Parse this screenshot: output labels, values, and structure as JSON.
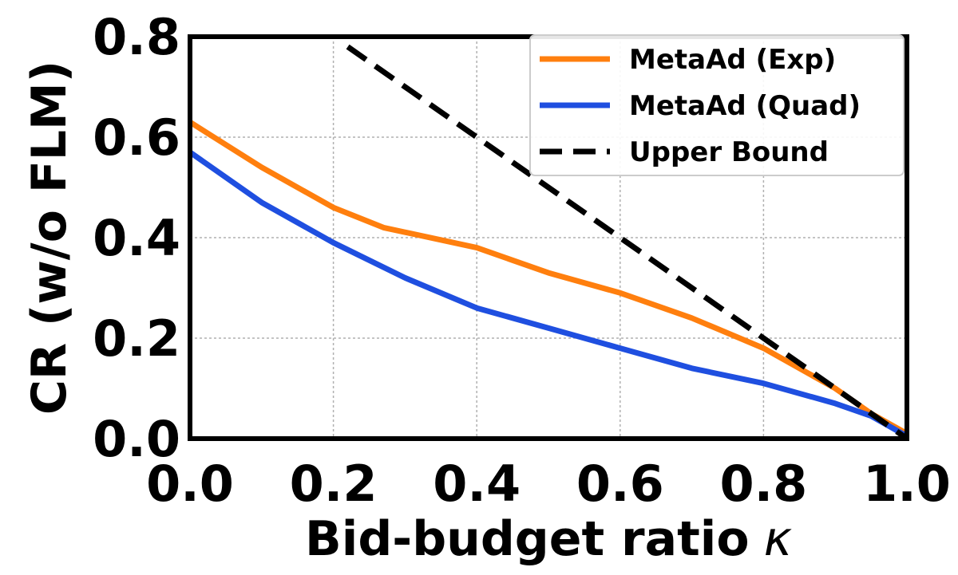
{
  "chart_data": {
    "type": "line",
    "xlabel": "Bid-budget ratio",
    "xlabel_symbol": "κ",
    "ylabel": "CR (w/o FLM)",
    "xlim": [
      0.0,
      1.0
    ],
    "ylim": [
      0.0,
      0.8
    ],
    "xticks": [
      "0.0",
      "0.2",
      "0.4",
      "0.6",
      "0.8",
      "1.0"
    ],
    "yticks": [
      "0.0",
      "0.2",
      "0.4",
      "0.6",
      "0.8"
    ],
    "grid": true,
    "legend_position": "top-right",
    "series": [
      {
        "name": "MetaAd (Exp)",
        "color": "#ff7f0e",
        "style": "solid",
        "x": [
          0.0,
          0.1,
          0.2,
          0.27,
          0.4,
          0.5,
          0.6,
          0.7,
          0.8,
          0.9,
          0.95,
          1.0
        ],
        "y": [
          0.63,
          0.54,
          0.46,
          0.42,
          0.38,
          0.33,
          0.29,
          0.24,
          0.18,
          0.1,
          0.05,
          0.01
        ]
      },
      {
        "name": "MetaAd (Quad)",
        "color": "#1f4fe0",
        "style": "solid",
        "x": [
          0.0,
          0.1,
          0.2,
          0.3,
          0.4,
          0.5,
          0.6,
          0.7,
          0.8,
          0.9,
          0.95,
          1.0
        ],
        "y": [
          0.57,
          0.47,
          0.39,
          0.32,
          0.26,
          0.22,
          0.18,
          0.14,
          0.11,
          0.07,
          0.045,
          0.005
        ]
      },
      {
        "name": "Upper Bound",
        "color": "#000000",
        "style": "dashed",
        "x": [
          0.22,
          1.0
        ],
        "y": [
          0.78,
          0.0
        ]
      }
    ]
  }
}
